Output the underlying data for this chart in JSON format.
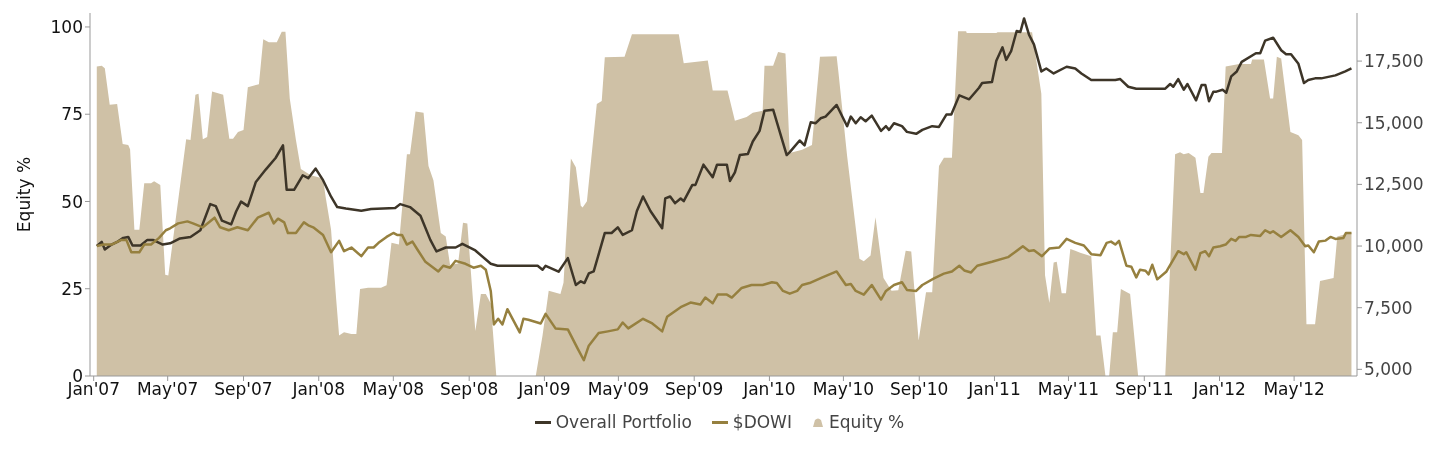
{
  "chart_data": {
    "type": "line",
    "ylabel": "Equity %",
    "legend": "bottom",
    "xlim": [
      "2006-12-26",
      "2012-08-11"
    ],
    "xticks": [
      {
        "value": "2007-01-01",
        "label": "Jan'07"
      },
      {
        "value": "2007-05-01",
        "label": "May'07"
      },
      {
        "value": "2007-09-01",
        "label": "Sep'07"
      },
      {
        "value": "2008-01-01",
        "label": "Jan'08"
      },
      {
        "value": "2008-05-01",
        "label": "May'08"
      },
      {
        "value": "2008-09-01",
        "label": "Sep'08"
      },
      {
        "value": "2009-01-01",
        "label": "Jan'09"
      },
      {
        "value": "2009-05-01",
        "label": "May'09"
      },
      {
        "value": "2009-09-01",
        "label": "Sep'09"
      },
      {
        "value": "2010-01-01",
        "label": "Jan'10"
      },
      {
        "value": "2010-05-01",
        "label": "May'10"
      },
      {
        "value": "2010-09-01",
        "label": "Sep'10"
      },
      {
        "value": "2011-01-01",
        "label": "Jan'11"
      },
      {
        "value": "2011-05-01",
        "label": "May'11"
      },
      {
        "value": "2011-09-01",
        "label": "Sep'11"
      },
      {
        "value": "2012-01-01",
        "label": "Jan'12"
      },
      {
        "value": "2012-05-01",
        "label": "May'12"
      }
    ],
    "ylim": [
      0,
      104
    ],
    "yticks": [
      0,
      25,
      50,
      75,
      100
    ],
    "y2lim": [
      4730,
      19450
    ],
    "y2ticks": [
      {
        "value": 5000,
        "label": "5,000"
      },
      {
        "value": 7500,
        "label": "7,500"
      },
      {
        "value": 10000,
        "label": "10,000"
      },
      {
        "value": 12500,
        "label": "12,500"
      },
      {
        "value": 15000,
        "label": "15,000"
      },
      {
        "value": 17500,
        "label": "17,500"
      }
    ],
    "series": [
      {
        "name": "Overall Portfolio",
        "color": "#3d3528",
        "axis": "y2",
        "x": [
          "2007-01-06",
          "2007-01-14",
          "2007-01-19",
          "2007-01-30",
          "2007-02-09",
          "2007-02-18",
          "2007-02-26",
          "2007-03-05",
          "2007-03-18",
          "2007-03-29",
          "2007-04-07",
          "2007-04-23",
          "2007-05-05",
          "2007-05-21",
          "2007-06-07",
          "2007-06-23",
          "2007-07-09",
          "2007-07-18",
          "2007-07-28",
          "2007-08-12",
          "2007-08-20",
          "2007-08-28",
          "2007-09-08",
          "2007-09-21",
          "2007-10-07",
          "2007-10-23",
          "2007-11-04",
          "2007-11-10",
          "2007-11-22",
          "2007-12-06",
          "2007-12-15",
          "2007-12-27",
          "2008-01-08",
          "2008-01-21",
          "2008-01-31",
          "2008-02-14",
          "2008-03-10",
          "2008-03-26",
          "2008-05-04",
          "2008-05-12",
          "2008-05-28",
          "2008-06-14",
          "2008-06-30",
          "2008-07-10",
          "2008-07-25",
          "2008-08-10",
          "2008-08-21",
          "2008-09-11",
          "2008-10-06",
          "2008-10-17",
          "2008-12-21",
          "2008-12-29",
          "2009-01-03",
          "2009-01-24",
          "2009-02-08",
          "2009-02-21",
          "2009-03-01",
          "2009-03-07",
          "2009-03-14",
          "2009-03-22",
          "2009-04-09",
          "2009-04-20",
          "2009-04-30",
          "2009-05-08",
          "2009-05-23",
          "2009-05-31",
          "2009-06-10",
          "2009-06-22",
          "2009-07-11",
          "2009-07-16",
          "2009-07-24",
          "2009-08-01",
          "2009-08-10",
          "2009-08-15",
          "2009-08-29",
          "2009-09-03",
          "2009-09-16",
          "2009-10-01",
          "2009-10-08",
          "2009-10-24",
          "2009-10-29",
          "2009-11-06",
          "2009-11-14",
          "2009-11-27",
          "2009-12-05",
          "2009-12-16",
          "2009-12-24",
          "2010-01-07",
          "2010-01-29",
          "2010-02-03",
          "2010-02-19",
          "2010-02-27",
          "2010-03-09",
          "2010-03-17",
          "2010-03-25",
          "2010-04-02",
          "2010-04-20",
          "2010-05-07",
          "2010-05-13",
          "2010-05-21",
          "2010-05-29",
          "2010-06-06",
          "2010-06-16",
          "2010-07-01",
          "2010-07-09",
          "2010-07-14",
          "2010-07-22",
          "2010-08-04",
          "2010-08-12",
          "2010-08-27",
          "2010-09-06",
          "2010-09-22",
          "2010-10-03",
          "2010-10-15",
          "2010-10-23",
          "2010-11-05",
          "2010-11-21",
          "2010-12-07",
          "2010-12-12",
          "2010-12-28",
          "2011-01-04",
          "2011-01-14",
          "2011-01-20",
          "2011-01-28",
          "2011-02-06",
          "2011-02-12",
          "2011-02-18",
          "2011-02-26",
          "2011-03-06",
          "2011-03-18",
          "2011-03-26",
          "2011-04-07",
          "2011-04-28",
          "2011-05-12",
          "2011-05-22",
          "2011-06-07",
          "2011-07-16",
          "2011-07-24",
          "2011-08-06",
          "2011-08-19",
          "2011-10-05",
          "2011-10-13",
          "2011-10-18",
          "2011-10-26",
          "2011-11-04",
          "2011-11-10",
          "2011-11-24",
          "2011-12-03",
          "2011-12-09",
          "2011-12-15",
          "2011-12-22",
          "2011-12-27",
          "2012-01-06",
          "2012-01-12",
          "2012-01-20",
          "2012-01-29",
          "2012-02-06",
          "2012-02-29",
          "2012-03-07",
          "2012-03-15",
          "2012-03-28",
          "2012-04-10",
          "2012-04-18",
          "2012-04-26",
          "2012-05-08",
          "2012-05-17",
          "2012-05-24",
          "2012-06-04",
          "2012-06-14",
          "2012-07-07",
          "2012-07-23",
          "2012-08-02"
        ],
        "values": [
          10000,
          10170,
          9860,
          10060,
          10180,
          10330,
          10370,
          10020,
          10020,
          10250,
          10250,
          10060,
          10110,
          10310,
          10370,
          10640,
          11700,
          11620,
          11030,
          10880,
          11400,
          11800,
          11620,
          12600,
          13100,
          13570,
          14080,
          12280,
          12280,
          12870,
          12750,
          13140,
          12670,
          12000,
          11580,
          11520,
          11430,
          11500,
          11540,
          11700,
          11580,
          11230,
          10250,
          9780,
          9940,
          9940,
          10090,
          9820,
          9280,
          9200,
          9200,
          9040,
          9200,
          8960,
          9510,
          8420,
          8570,
          8500,
          8890,
          8970,
          10530,
          10530,
          10760,
          10450,
          10640,
          11420,
          12010,
          11420,
          10720,
          11930,
          12010,
          11740,
          11930,
          11820,
          12480,
          12480,
          13300,
          12790,
          13300,
          13300,
          12640,
          12990,
          13690,
          13730,
          14240,
          14670,
          15490,
          15530,
          13690,
          13810,
          14280,
          14080,
          15020,
          14980,
          15180,
          15250,
          15720,
          14860,
          15250,
          14980,
          15220,
          15060,
          15290,
          14670,
          14860,
          14710,
          14980,
          14860,
          14630,
          14550,
          14710,
          14860,
          14830,
          15330,
          15330,
          16110,
          15950,
          16420,
          16610,
          16650,
          17510,
          18060,
          17550,
          17900,
          18720,
          18680,
          19230,
          18570,
          18180,
          17080,
          17200,
          17000,
          17270,
          17200,
          17000,
          16730,
          16730,
          16770,
          16460,
          16380,
          16380,
          16570,
          16460,
          16770,
          16340,
          16570,
          15910,
          16530,
          16530,
          15870,
          16260,
          16260,
          16340,
          16220,
          16880,
          17080,
          17470,
          17820,
          17820,
          18330,
          18450,
          17940,
          17780,
          17780,
          17390,
          16610,
          16730,
          16800,
          16800,
          16920,
          17080,
          17200
        ]
      },
      {
        "name": "$DOWI",
        "color": "#96803f",
        "axis": "y2",
        "x": [
          "2007-01-06",
          "2007-01-17",
          "2007-01-30",
          "2007-02-15",
          "2007-02-23",
          "2007-03-03",
          "2007-03-16",
          "2007-03-24",
          "2007-04-04",
          "2007-04-17",
          "2007-04-28",
          "2007-05-05",
          "2007-05-18",
          "2007-06-02",
          "2007-06-11",
          "2007-06-27",
          "2007-07-16",
          "2007-07-25",
          "2007-08-08",
          "2007-08-22",
          "2007-09-08",
          "2007-09-24",
          "2007-10-12",
          "2007-10-20",
          "2007-10-27",
          "2007-11-06",
          "2007-11-12",
          "2007-11-25",
          "2007-12-08",
          "2007-12-15",
          "2007-12-23",
          "2008-01-08",
          "2008-01-21",
          "2008-02-03",
          "2008-02-11",
          "2008-02-23",
          "2008-03-10",
          "2008-03-21",
          "2008-03-30",
          "2008-04-07",
          "2008-04-20",
          "2008-05-01",
          "2008-05-07",
          "2008-05-15",
          "2008-05-23",
          "2008-06-01",
          "2008-06-09",
          "2008-06-22",
          "2008-07-13",
          "2008-07-21",
          "2008-08-01",
          "2008-08-10",
          "2008-08-26",
          "2008-09-08",
          "2008-09-20",
          "2008-09-28",
          "2008-10-06",
          "2008-10-11",
          "2008-10-18",
          "2008-10-25",
          "2008-11-02",
          "2008-11-22",
          "2008-11-28",
          "2008-12-06",
          "2008-12-26",
          "2009-01-03",
          "2009-01-19",
          "2009-02-08",
          "2009-02-24",
          "2009-03-06",
          "2009-03-14",
          "2009-03-30",
          "2009-04-14",
          "2009-04-30",
          "2009-05-08",
          "2009-05-17",
          "2009-06-10",
          "2009-06-25",
          "2009-07-11",
          "2009-07-19",
          "2009-08-10",
          "2009-08-26",
          "2009-09-11",
          "2009-09-19",
          "2009-10-01",
          "2009-10-09",
          "2009-10-24",
          "2009-11-01",
          "2009-11-17",
          "2009-12-03",
          "2009-12-21",
          "2010-01-05",
          "2010-01-13",
          "2010-01-23",
          "2010-02-03",
          "2010-02-15",
          "2010-02-23",
          "2010-03-07",
          "2010-03-28",
          "2010-04-20",
          "2010-05-05",
          "2010-05-13",
          "2010-05-21",
          "2010-06-03",
          "2010-06-16",
          "2010-07-01",
          "2010-07-09",
          "2010-07-22",
          "2010-08-04",
          "2010-08-12",
          "2010-08-27",
          "2010-09-06",
          "2010-09-25",
          "2010-10-11",
          "2010-10-24",
          "2010-11-05",
          "2010-11-13",
          "2010-11-24",
          "2010-12-04",
          "2010-12-28",
          "2011-01-23",
          "2011-02-03",
          "2011-02-16",
          "2011-02-26",
          "2011-03-06",
          "2011-03-19",
          "2011-03-31",
          "2011-04-16",
          "2011-04-28",
          "2011-05-12",
          "2011-05-26",
          "2011-06-07",
          "2011-06-22",
          "2011-07-02",
          "2011-07-09",
          "2011-07-16",
          "2011-07-22",
          "2011-08-03",
          "2011-08-11",
          "2011-08-19",
          "2011-08-25",
          "2011-09-03",
          "2011-09-08",
          "2011-09-14",
          "2011-09-22",
          "2011-10-07",
          "2011-10-26",
          "2011-11-04",
          "2011-11-08",
          "2011-11-23",
          "2011-12-01",
          "2011-12-09",
          "2011-12-15",
          "2011-12-22",
          "2012-01-02",
          "2012-01-11",
          "2012-01-20",
          "2012-01-27",
          "2012-02-02",
          "2012-02-13",
          "2012-02-21",
          "2012-03-07",
          "2012-03-15",
          "2012-03-23",
          "2012-03-28",
          "2012-04-10",
          "2012-04-25",
          "2012-05-08",
          "2012-05-19",
          "2012-05-24",
          "2012-06-02",
          "2012-06-10",
          "2012-06-21",
          "2012-06-29",
          "2012-07-07",
          "2012-07-20",
          "2012-07-24",
          "2012-08-02"
        ],
        "values": [
          10000,
          10060,
          10060,
          10250,
          10250,
          9750,
          9750,
          10060,
          10060,
          10330,
          10640,
          10720,
          10920,
          11000,
          10920,
          10760,
          11150,
          10760,
          10640,
          10760,
          10640,
          11150,
          11350,
          10920,
          11110,
          10960,
          10530,
          10530,
          10960,
          10840,
          10760,
          10450,
          9750,
          10210,
          9790,
          9940,
          9590,
          9940,
          9940,
          10130,
          10370,
          10530,
          10450,
          10450,
          10060,
          10180,
          9860,
          9360,
          8970,
          9200,
          9120,
          9400,
          9280,
          9120,
          9200,
          9040,
          8180,
          6820,
          7050,
          6820,
          7440,
          6500,
          7050,
          7010,
          6860,
          7250,
          6660,
          6620,
          5840,
          5370,
          5960,
          6470,
          6540,
          6620,
          6900,
          6660,
          7050,
          6860,
          6540,
          7130,
          7520,
          7710,
          7630,
          7910,
          7680,
          8030,
          8030,
          7910,
          8300,
          8420,
          8420,
          8530,
          8500,
          8180,
          8070,
          8180,
          8420,
          8500,
          8730,
          8970,
          8420,
          8460,
          8180,
          8030,
          8420,
          7830,
          8180,
          8420,
          8530,
          8220,
          8180,
          8420,
          8690,
          8880,
          8970,
          9200,
          9010,
          8930,
          9200,
          9360,
          9550,
          9750,
          9990,
          9800,
          9830,
          9590,
          9900,
          9940,
          10290,
          10130,
          10020,
          9670,
          9630,
          10130,
          10180,
          10060,
          10210,
          9200,
          9160,
          8730,
          9040,
          9000,
          8850,
          9240,
          8650,
          8970,
          9790,
          9670,
          9750,
          9040,
          9710,
          9790,
          9590,
          9940,
          9990,
          10060,
          10290,
          10210,
          10370,
          10370,
          10450,
          10410,
          10640,
          10530,
          10600,
          10370,
          10640,
          10370,
          9990,
          10020,
          9750,
          10180,
          10220,
          10370,
          10290,
          10330,
          10530,
          10530
        ]
      },
      {
        "name": "Equity %",
        "type": "area",
        "color": "#cfc1a6",
        "x": [
          "2007-01-06",
          "2007-01-14",
          "2007-01-19",
          "2007-01-27",
          "2007-02-08",
          "2007-02-17",
          "2007-02-26",
          "2007-03-01",
          "2007-03-08",
          "2007-03-16",
          "2007-03-24",
          "2007-04-04",
          "2007-04-09",
          "2007-04-19",
          "2007-04-27",
          "2007-05-02",
          "2007-05-31",
          "2007-06-07",
          "2007-06-15",
          "2007-06-20",
          "2007-06-27",
          "2007-07-04",
          "2007-07-12",
          "2007-07-30",
          "2007-08-09",
          "2007-08-15",
          "2007-08-23",
          "2007-09-01",
          "2007-09-08",
          "2007-09-26",
          "2007-10-03",
          "2007-10-12",
          "2007-10-25",
          "2007-11-02",
          "2007-11-08",
          "2007-11-15",
          "2007-11-25",
          "2007-12-03",
          "2007-12-19",
          "2008-01-08",
          "2008-01-12",
          "2008-01-21",
          "2008-01-29",
          "2008-02-03",
          "2008-02-11",
          "2008-02-23",
          "2008-03-02",
          "2008-03-08",
          "2008-03-21",
          "2008-04-11",
          "2008-04-20",
          "2008-04-28",
          "2008-05-10",
          "2008-05-23",
          "2008-05-28",
          "2008-06-06",
          "2008-06-19",
          "2008-06-27",
          "2008-07-05",
          "2008-07-17",
          "2008-07-25",
          "2008-08-01",
          "2008-08-14",
          "2008-08-22",
          "2008-08-29",
          "2008-09-07",
          "2008-09-11",
          "2008-09-20",
          "2008-09-28",
          "2008-10-06",
          "2008-10-15",
          "2008-12-18",
          "2008-12-29",
          "2009-01-08",
          "2009-01-27",
          "2009-02-01",
          "2009-02-13",
          "2009-02-21",
          "2009-03-01",
          "2009-03-04",
          "2009-03-11",
          "2009-03-27",
          "2009-04-04",
          "2009-04-09",
          "2009-05-11",
          "2009-05-23",
          "2009-08-07",
          "2009-08-15",
          "2009-09-23",
          "2009-10-01",
          "2009-10-25",
          "2009-11-06",
          "2009-11-25",
          "2009-12-05",
          "2009-12-21",
          "2009-12-24",
          "2010-01-07",
          "2010-01-15",
          "2010-01-27",
          "2010-02-03",
          "2010-02-23",
          "2010-03-11",
          "2010-03-24",
          "2010-04-20",
          "2010-04-23",
          "2010-05-07",
          "2010-05-27",
          "2010-06-03",
          "2010-06-14",
          "2010-06-22",
          "2010-07-05",
          "2010-07-18",
          "2010-07-29",
          "2010-08-10",
          "2010-08-19",
          "2010-08-31",
          "2010-09-12",
          "2010-09-22",
          "2010-10-03",
          "2010-10-11",
          "2010-10-24",
          "2010-11-03",
          "2010-11-16",
          "2010-11-17",
          "2011-01-04",
          "2011-01-06",
          "2011-03-03",
          "2011-03-18",
          "2011-03-24",
          "2011-03-31",
          "2011-04-07",
          "2011-04-12",
          "2011-04-20",
          "2011-04-27",
          "2011-05-04",
          "2011-05-12",
          "2011-05-20",
          "2011-06-07",
          "2011-06-15",
          "2011-06-22",
          "2011-06-30",
          "2011-07-06",
          "2011-07-12",
          "2011-07-19",
          "2011-07-25",
          "2011-08-09",
          "2011-08-22",
          "2011-10-05",
          "2011-10-21",
          "2011-10-29",
          "2011-11-04",
          "2011-11-12",
          "2011-11-23",
          "2011-12-01",
          "2011-12-06",
          "2011-12-14",
          "2011-12-19",
          "2012-01-05",
          "2012-01-11",
          "2012-02-02",
          "2012-02-21",
          "2012-02-23",
          "2012-03-13",
          "2012-03-23",
          "2012-03-28",
          "2012-04-03",
          "2012-04-10",
          "2012-04-25",
          "2012-05-08",
          "2012-05-14",
          "2012-05-21",
          "2012-06-04",
          "2012-06-12",
          "2012-07-04",
          "2012-07-10",
          "2012-08-02"
        ],
        "values": [
          88.7,
          88.9,
          88.2,
          77.7,
          77.9,
          66.5,
          66.2,
          65,
          41.9,
          41.9,
          55.2,
          55.2,
          55.8,
          54.7,
          29,
          28.8,
          67.8,
          67.6,
          80.6,
          80.9,
          67.8,
          68.5,
          81.5,
          80.6,
          68,
          68,
          69.9,
          70.5,
          82.7,
          83.6,
          96.5,
          95.6,
          95.6,
          98.6,
          98.6,
          79.5,
          67.6,
          59.3,
          57.5,
          56.6,
          51.5,
          41.9,
          22.6,
          11.6,
          12.5,
          12,
          12,
          24.9,
          25.3,
          25.3,
          26,
          38.2,
          37.7,
          63.5,
          63.5,
          75.8,
          75.4,
          60.2,
          56.1,
          41,
          40,
          31.8,
          32.2,
          43.9,
          43.7,
          22.1,
          12.9,
          23.5,
          23.5,
          20.8,
          0,
          0,
          11.6,
          24.4,
          23.5,
          26.7,
          62.3,
          59.8,
          48.8,
          48.3,
          50.1,
          77.9,
          78.8,
          91.3,
          91.5,
          97.9,
          97.9,
          89.6,
          90.4,
          81.8,
          81.8,
          73.1,
          74.2,
          75.4,
          76,
          88.9,
          88.9,
          92.8,
          92.4,
          63.9,
          64.8,
          66.2,
          91.5,
          91.6,
          86.9,
          63,
          33.6,
          32.9,
          34.5,
          45.5,
          28.1,
          24.4,
          24.6,
          35.9,
          35.7,
          10.2,
          24,
          24,
          60.2,
          62.5,
          62.5,
          98.8,
          98.8,
          98.3,
          98.3,
          98.5,
          98.5,
          80.9,
          28.9,
          20.9,
          32.5,
          32.7,
          23.7,
          23.7,
          36.4,
          35.9,
          35.3,
          34.3,
          11.6,
          11.6,
          0,
          0,
          12.5,
          12.5,
          24.9,
          23.5,
          0,
          0,
          63.5,
          64.1,
          63.5,
          63.9,
          62.5,
          52.4,
          52.4,
          62.8,
          63.9,
          63.9,
          88.7,
          89.4,
          89.4,
          90.7,
          90.7,
          79.5,
          79.5,
          91.5,
          91,
          69.9,
          69,
          67.6,
          14.8,
          14.8,
          27.2,
          28.1,
          40,
          41.1
        ]
      }
    ]
  }
}
